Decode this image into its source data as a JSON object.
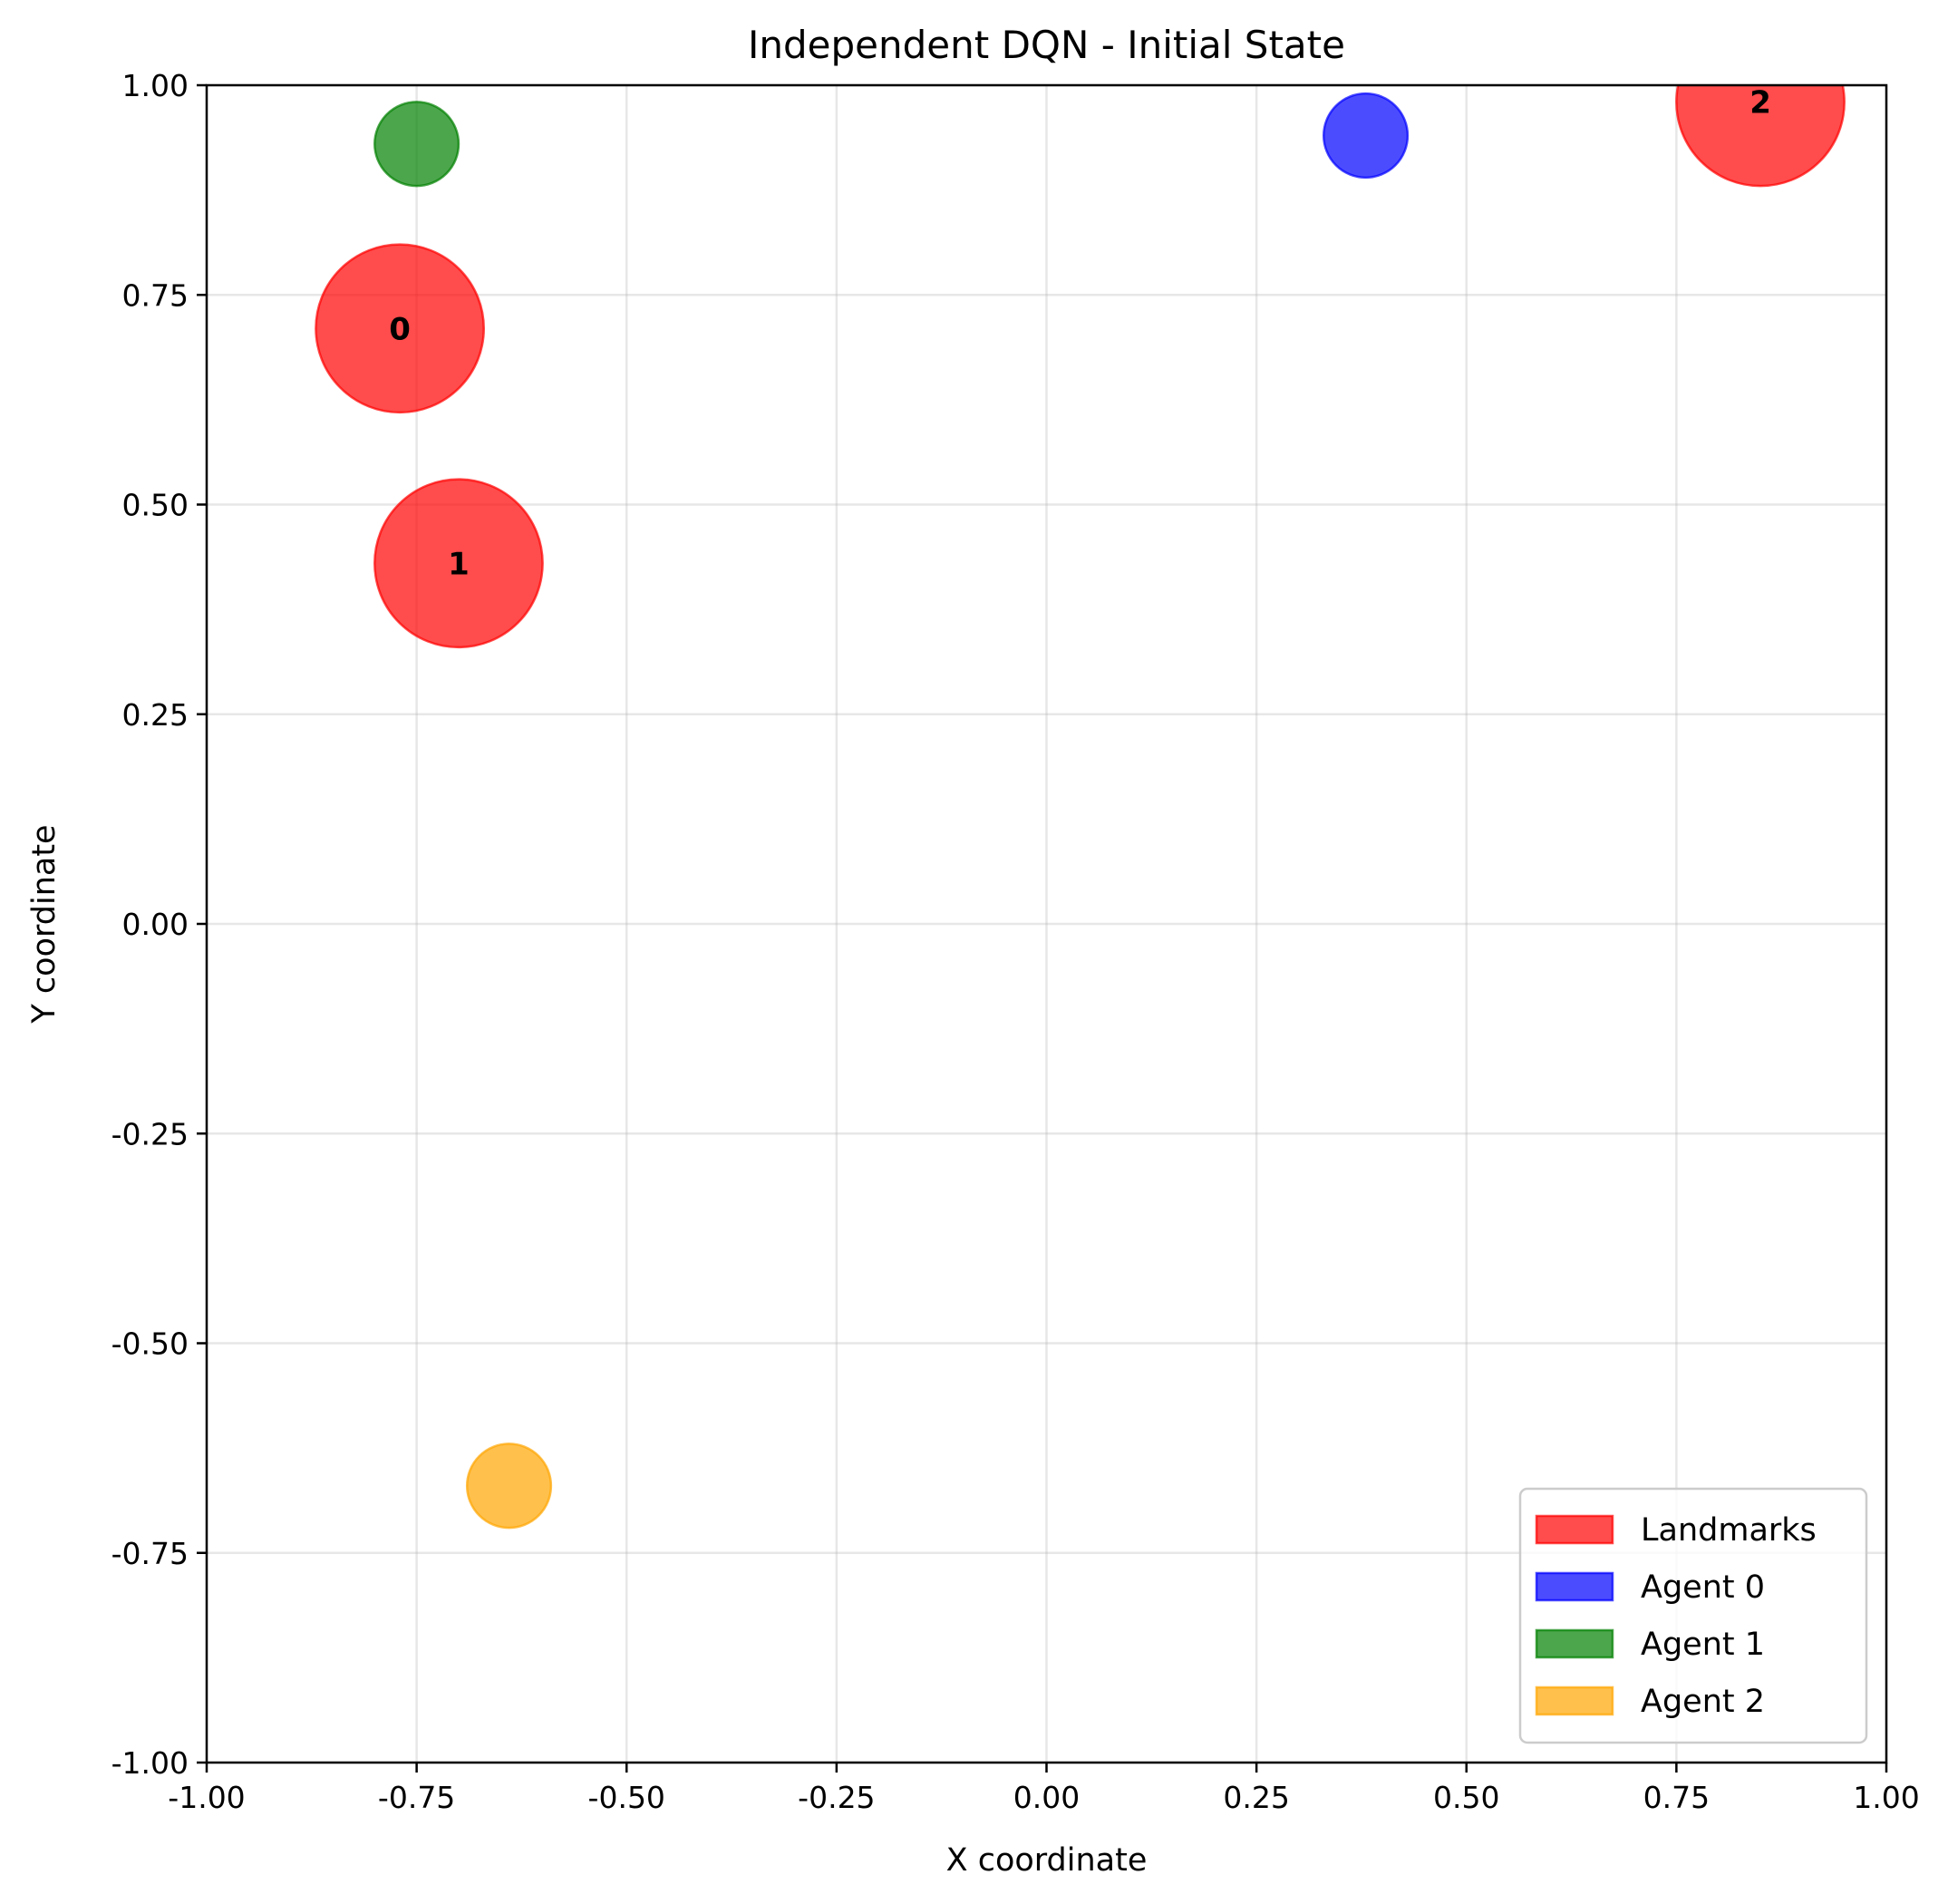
{
  "chart_data": {
    "type": "scatter",
    "title": "Independent DQN - Initial State",
    "xlabel": "X coordinate",
    "ylabel": "Y coordinate",
    "xlim": [
      -1.0,
      1.0
    ],
    "ylim": [
      -1.0,
      1.0
    ],
    "xticks": [
      "-1.00",
      "-0.75",
      "-0.50",
      "-0.25",
      "0.00",
      "0.25",
      "0.50",
      "0.75",
      "1.00"
    ],
    "yticks": [
      "-1.00",
      "-0.75",
      "-0.50",
      "-0.25",
      "0.00",
      "0.25",
      "0.50",
      "0.75",
      "1.00"
    ],
    "grid": true,
    "legend_position": "bottom-right",
    "series": [
      {
        "name": "Landmarks",
        "color": "#ff0000",
        "radius": 0.1,
        "points": [
          {
            "x": -0.77,
            "y": 0.71,
            "label": "0"
          },
          {
            "x": -0.7,
            "y": 0.43,
            "label": "1"
          },
          {
            "x": 0.85,
            "y": 0.98,
            "label": "2"
          }
        ]
      },
      {
        "name": "Agent 0",
        "color": "#0000ff",
        "radius": 0.05,
        "points": [
          {
            "x": 0.38,
            "y": 0.94
          }
        ]
      },
      {
        "name": "Agent 1",
        "color": "#008000",
        "radius": 0.05,
        "points": [
          {
            "x": -0.75,
            "y": 0.93
          }
        ]
      },
      {
        "name": "Agent 2",
        "color": "#ffa500",
        "radius": 0.05,
        "points": [
          {
            "x": -0.64,
            "y": -0.67
          }
        ]
      }
    ]
  }
}
